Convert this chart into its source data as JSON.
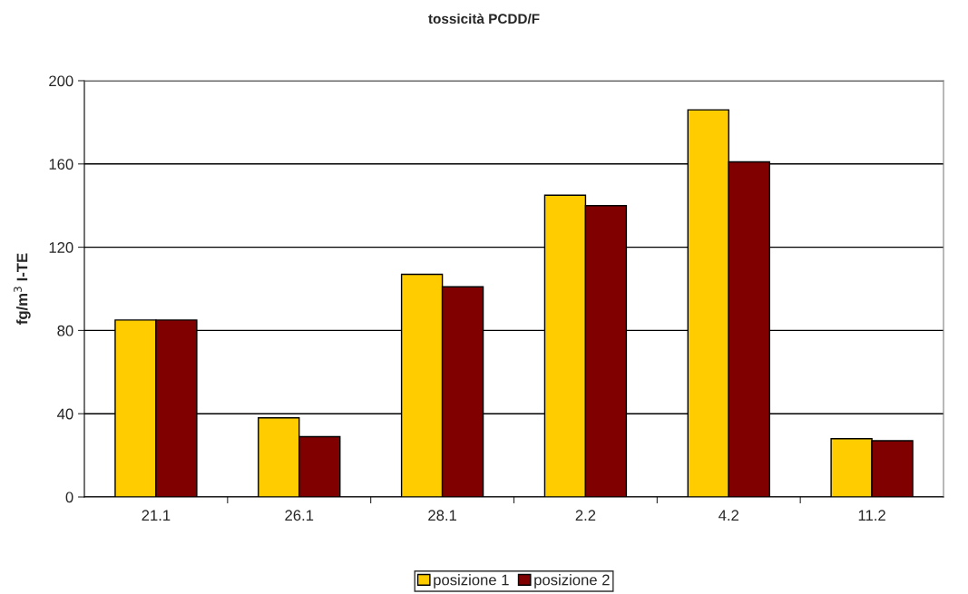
{
  "chart_data": {
    "type": "bar",
    "title": "tossicità PCDD/F",
    "ylabel": "fg/m$^{3}$ I-TE",
    "categories": [
      "21.1",
      "26.1",
      "28.1",
      "2.2",
      "4.2",
      "11.2"
    ],
    "series": [
      {
        "name": "posizione 1",
        "color": "#ffcc00",
        "values": [
          85,
          38,
          107,
          145,
          186,
          28
        ]
      },
      {
        "name": "posizione 2",
        "color": "#800000",
        "values": [
          85,
          29,
          101,
          140,
          161,
          27
        ]
      }
    ],
    "ylim": [
      0,
      200
    ],
    "yticks": [
      0,
      40,
      80,
      120,
      160,
      200
    ],
    "grid": "y",
    "legend": "bottom"
  }
}
